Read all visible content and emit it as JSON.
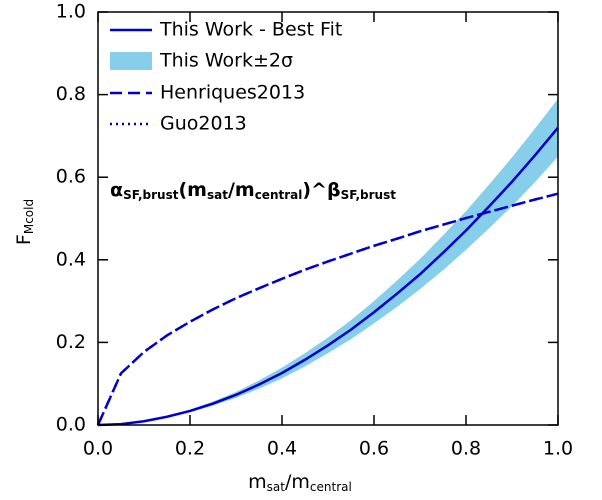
{
  "chart_data": {
    "type": "line",
    "x_label": [
      "m",
      "sat",
      "/m",
      "central"
    ],
    "y_label": [
      "F",
      "Mcold"
    ],
    "annotation": [
      "α",
      "SF,brust",
      "(m",
      "sat",
      "/m",
      "central",
      ")^β",
      "SF,brust"
    ],
    "x": [
      0,
      0.05,
      0.1,
      0.15,
      0.2,
      0.25,
      0.3,
      0.35,
      0.4,
      0.45,
      0.5,
      0.55,
      0.6,
      0.65,
      0.7,
      0.75,
      0.8,
      0.85,
      0.9,
      0.95,
      1
    ],
    "series": [
      {
        "name": "This Work - Best Fit",
        "color": "#0000cd",
        "style": "solid",
        "values": [
          0,
          0.002,
          0.009,
          0.02,
          0.034,
          0.052,
          0.073,
          0.098,
          0.126,
          0.158,
          0.193,
          0.231,
          0.273,
          0.318,
          0.365,
          0.417,
          0.471,
          0.529,
          0.589,
          0.653,
          0.72
        ]
      },
      {
        "name": "This Work±2σ",
        "color": "#87ceeb",
        "style": "band",
        "values": [
          0,
          0.002,
          0.01,
          0.022,
          0.037,
          0.057,
          0.08,
          0.108,
          0.139,
          0.174,
          0.212,
          0.254,
          0.3,
          0.35,
          0.402,
          0.459,
          0.518,
          0.582,
          0.648,
          0.718,
          0.79
        ],
        "lower": [
          0,
          0.002,
          0.008,
          0.018,
          0.031,
          0.047,
          0.066,
          0.088,
          0.113,
          0.142,
          0.174,
          0.208,
          0.246,
          0.286,
          0.329,
          0.375,
          0.424,
          0.476,
          0.53,
          0.588,
          0.65
        ]
      },
      {
        "name": "Henriques2013",
        "color": "#0000cd",
        "style": "dashed",
        "values": [
          0,
          0.125,
          0.177,
          0.217,
          0.25,
          0.28,
          0.307,
          0.331,
          0.354,
          0.376,
          0.396,
          0.415,
          0.434,
          0.451,
          0.469,
          0.485,
          0.501,
          0.516,
          0.531,
          0.546,
          0.56
        ]
      },
      {
        "name": "Guo2013",
        "color": "#0000cd",
        "style": "dotted",
        "values": [
          0,
          0.125,
          0.177,
          0.217,
          0.25,
          0.28,
          0.307,
          0.331,
          0.354,
          0.376,
          0.396,
          0.415,
          0.434,
          0.451,
          0.469,
          0.485,
          0.501,
          0.516,
          0.531,
          0.546,
          0.56
        ]
      }
    ],
    "xlim": [
      0,
      1
    ],
    "ylim": [
      0,
      1
    ],
    "xticks": [
      {
        "value": 0,
        "label": "0.0"
      },
      0.2,
      0.4,
      0.6,
      0.8,
      {
        "value": 1,
        "label": "1.0"
      }
    ],
    "yticks": [
      {
        "value": 0,
        "label": "0.0"
      },
      0.2,
      0.4,
      0.6,
      0.8,
      {
        "value": 1,
        "label": "1.0"
      }
    ]
  }
}
